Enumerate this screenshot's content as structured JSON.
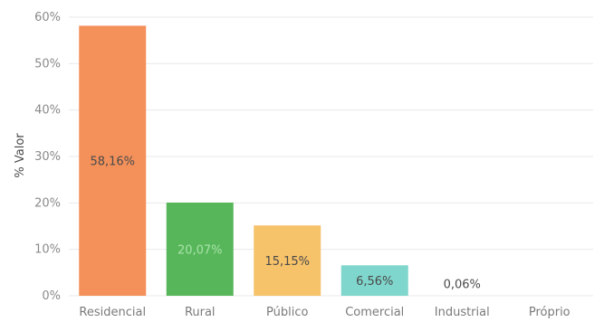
{
  "chart_data": {
    "type": "bar",
    "ylabel": "% Valor",
    "ylim": [
      0,
      60
    ],
    "yticks": [
      {
        "value": 0,
        "label": "0%"
      },
      {
        "value": 10,
        "label": "10%"
      },
      {
        "value": 20,
        "label": "20%"
      },
      {
        "value": 30,
        "label": "30%"
      },
      {
        "value": 40,
        "label": "40%"
      },
      {
        "value": 50,
        "label": "50%"
      },
      {
        "value": 60,
        "label": "60%"
      }
    ],
    "grid": true,
    "categories": [
      "Residencial",
      "Rural",
      "Público",
      "Comercial",
      "Industrial",
      "Próprio"
    ],
    "values": [
      58.16,
      20.07,
      15.15,
      6.56,
      0.06,
      0
    ],
    "data_labels": [
      "58,16%",
      "20,07%",
      "15,15%",
      "6,56%",
      "0,06%",
      ""
    ],
    "colors": [
      "#f4915a",
      "#57b65a",
      "#f6c26a",
      "#7fd6cc",
      "#5b9bd5",
      "#5b9bd5"
    ],
    "label_colors": [
      "#4a4a4a",
      "#a8e3a8",
      "#4a4a4a",
      "#4a4a4a",
      "#4a4a4a",
      "#4a4a4a"
    ]
  }
}
